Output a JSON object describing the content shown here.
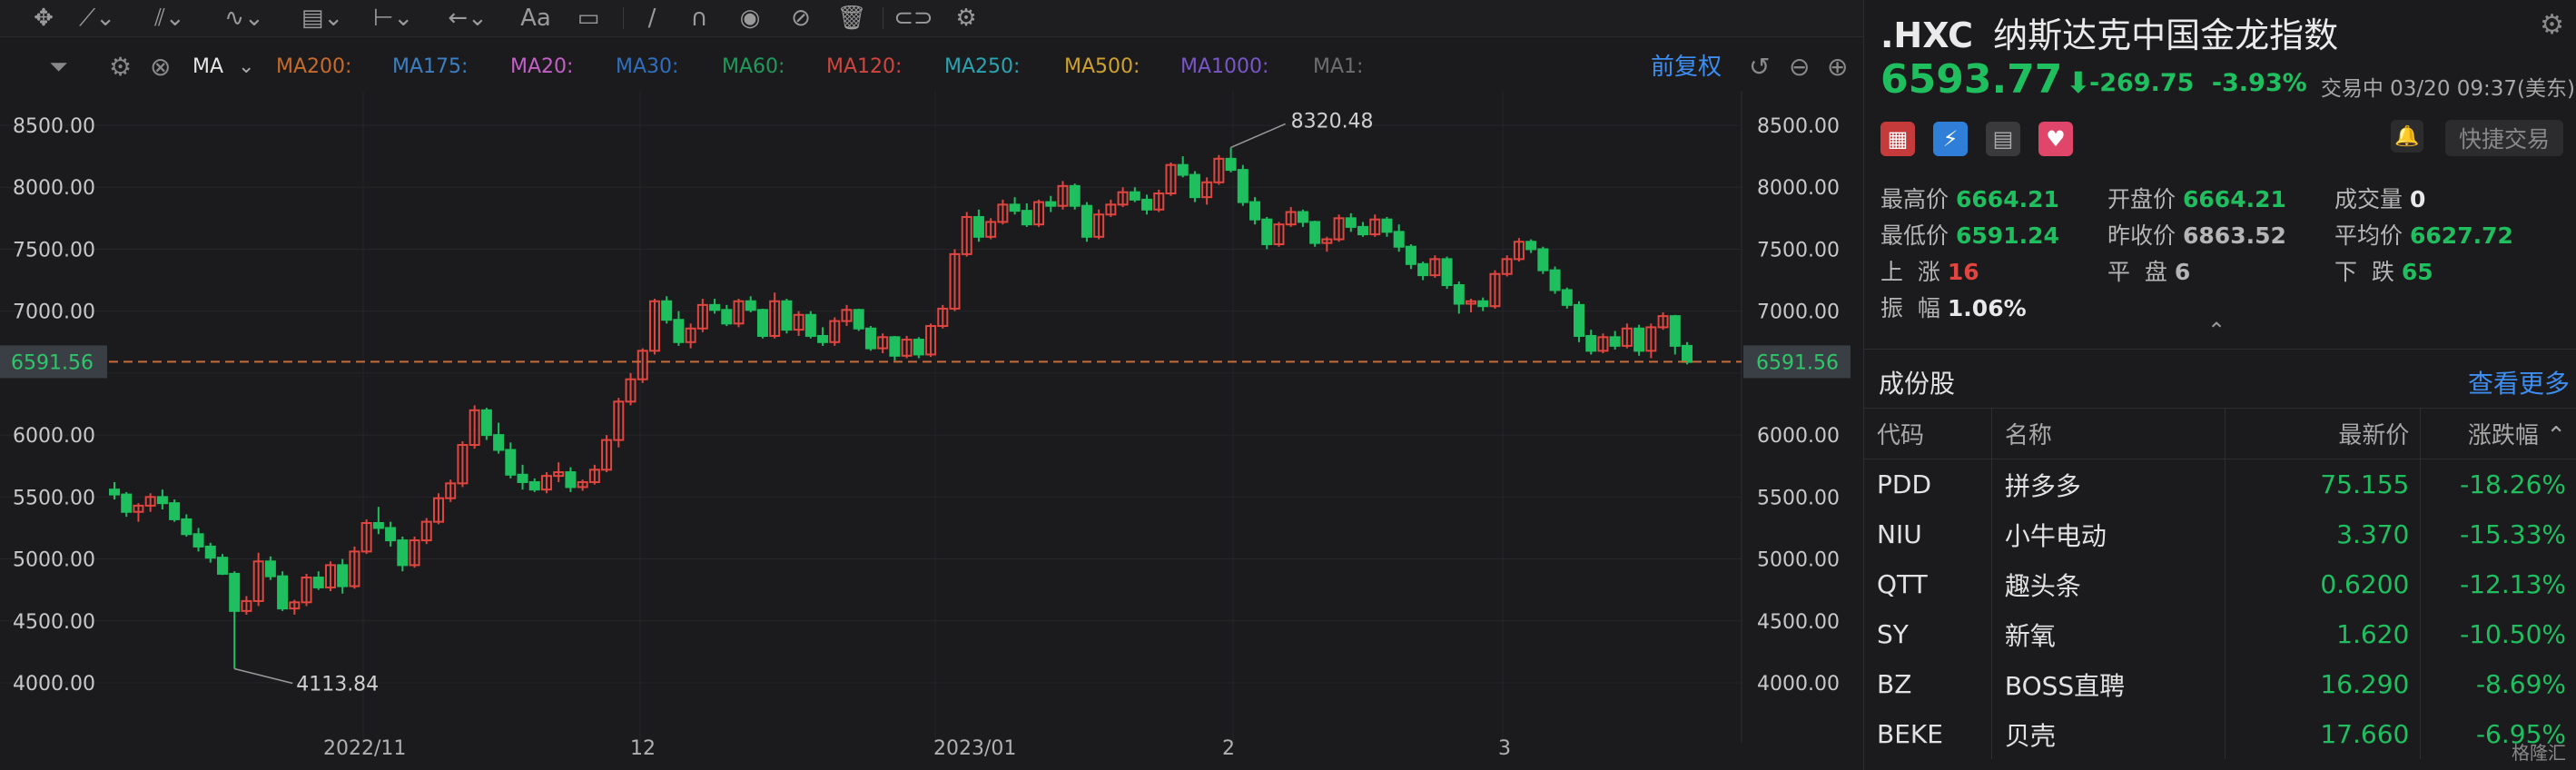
{
  "toolbar": {
    "icons": [
      "crosshair-icon",
      "trendline-icon",
      "channel-icon",
      "wave-icon",
      "fib-icon",
      "measure-icon",
      "arrow-icon",
      "text-icon",
      "comment-icon",
      "pen-icon",
      "magnet-icon",
      "eye-icon",
      "hide-icon",
      "trash-icon",
      "link-icon",
      "gear-icon"
    ],
    "text_tool_label": "Aa"
  },
  "ma_bar": {
    "indicator_label": "MA",
    "items": [
      {
        "label": "MA200:",
        "color": "#c76b2b"
      },
      {
        "label": "MA175:",
        "color": "#3b7fc4"
      },
      {
        "label": "MA20:",
        "color": "#c35fc7"
      },
      {
        "label": "MA30:",
        "color": "#2f6fc0"
      },
      {
        "label": "MA60:",
        "color": "#1f9a5a"
      },
      {
        "label": "MA120:",
        "color": "#d0453d"
      },
      {
        "label": "MA250:",
        "color": "#2aa4b3"
      },
      {
        "label": "MA500:",
        "color": "#d0a12b"
      },
      {
        "label": "MA1000:",
        "color": "#7a55c8"
      },
      {
        "label": "MA1:",
        "color": "#6e6e6e"
      }
    ],
    "restore_label": "前复权"
  },
  "chart_data": {
    "type": "candlestick",
    "y_ticks": [
      "8500.00",
      "8000.00",
      "7500.00",
      "7000.00",
      "6000.00",
      "5500.00",
      "5000.00",
      "4500.00",
      "4000.00"
    ],
    "y_range": [
      3900,
      8700
    ],
    "x_ticks": [
      "2022/11",
      "12",
      "2023/01",
      "2",
      "3"
    ],
    "current_price_label": "6591.56",
    "current_price": 6591.56,
    "max_label": "8320.48",
    "min_label": "4113.84",
    "up_color": "#e0463f",
    "down_color": "#1fbf5f",
    "candles": [
      [
        5560,
        5620,
        5480,
        5520
      ],
      [
        5520,
        5540,
        5340,
        5380
      ],
      [
        5380,
        5450,
        5300,
        5430
      ],
      [
        5430,
        5530,
        5380,
        5500
      ],
      [
        5500,
        5560,
        5400,
        5450
      ],
      [
        5450,
        5480,
        5300,
        5320
      ],
      [
        5320,
        5360,
        5180,
        5200
      ],
      [
        5200,
        5250,
        5060,
        5100
      ],
      [
        5100,
        5130,
        4970,
        5010
      ],
      [
        5010,
        5040,
        4870,
        4880
      ],
      [
        4880,
        4900,
        4113.84,
        4580
      ],
      [
        4580,
        4700,
        4550,
        4660
      ],
      [
        4660,
        5050,
        4620,
        4980
      ],
      [
        4980,
        5020,
        4830,
        4860
      ],
      [
        4860,
        4900,
        4580,
        4600
      ],
      [
        4600,
        4670,
        4550,
        4650
      ],
      [
        4650,
        4880,
        4620,
        4850
      ],
      [
        4850,
        4900,
        4750,
        4770
      ],
      [
        4770,
        4980,
        4740,
        4950
      ],
      [
        4950,
        5000,
        4720,
        4780
      ],
      [
        4780,
        5100,
        4760,
        5060
      ],
      [
        5060,
        5320,
        5040,
        5290
      ],
      [
        5290,
        5420,
        5200,
        5250
      ],
      [
        5250,
        5300,
        5100,
        5150
      ],
      [
        5150,
        5180,
        4900,
        4950
      ],
      [
        4950,
        5180,
        4930,
        5150
      ],
      [
        5150,
        5330,
        5120,
        5300
      ],
      [
        5300,
        5530,
        5280,
        5490
      ],
      [
        5490,
        5640,
        5460,
        5610
      ],
      [
        5610,
        5950,
        5580,
        5920
      ],
      [
        5920,
        6240,
        5890,
        6200
      ],
      [
        6200,
        6220,
        5960,
        6000
      ],
      [
        6000,
        6100,
        5850,
        5880
      ],
      [
        5880,
        5940,
        5650,
        5680
      ],
      [
        5680,
        5760,
        5560,
        5620
      ],
      [
        5620,
        5650,
        5540,
        5560
      ],
      [
        5560,
        5700,
        5530,
        5670
      ],
      [
        5670,
        5780,
        5620,
        5700
      ],
      [
        5700,
        5740,
        5540,
        5580
      ],
      [
        5580,
        5640,
        5550,
        5620
      ],
      [
        5620,
        5760,
        5600,
        5720
      ],
      [
        5720,
        6000,
        5700,
        5960
      ],
      [
        5960,
        6300,
        5900,
        6270
      ],
      [
        6270,
        6500,
        6240,
        6450
      ],
      [
        6450,
        6700,
        6420,
        6680
      ],
      [
        6680,
        7100,
        6650,
        7080
      ],
      [
        7080,
        7120,
        6900,
        6930
      ],
      [
        6930,
        7000,
        6720,
        6750
      ],
      [
        6750,
        6900,
        6700,
        6860
      ],
      [
        6860,
        7100,
        6830,
        7050
      ],
      [
        7050,
        7100,
        6980,
        7010
      ],
      [
        7010,
        7050,
        6880,
        6900
      ],
      [
        6900,
        7100,
        6870,
        7080
      ],
      [
        7080,
        7120,
        6990,
        7010
      ],
      [
        7010,
        7020,
        6780,
        6800
      ],
      [
        6800,
        7150,
        6780,
        7080
      ],
      [
        7080,
        7100,
        6820,
        6850
      ],
      [
        6850,
        7000,
        6800,
        6970
      ],
      [
        6970,
        7000,
        6780,
        6800
      ],
      [
        6800,
        6870,
        6720,
        6750
      ],
      [
        6750,
        6950,
        6720,
        6920
      ],
      [
        6920,
        7050,
        6880,
        7010
      ],
      [
        7010,
        7020,
        6840,
        6860
      ],
      [
        6860,
        6880,
        6680,
        6700
      ],
      [
        6700,
        6820,
        6660,
        6790
      ],
      [
        6790,
        6800,
        6600,
        6640
      ],
      [
        6640,
        6800,
        6620,
        6770
      ],
      [
        6770,
        6790,
        6620,
        6650
      ],
      [
        6650,
        6900,
        6630,
        6880
      ],
      [
        6880,
        7050,
        6860,
        7020
      ],
      [
        7020,
        7500,
        7000,
        7460
      ],
      [
        7460,
        7800,
        7440,
        7760
      ],
      [
        7760,
        7820,
        7560,
        7600
      ],
      [
        7600,
        7750,
        7580,
        7720
      ],
      [
        7720,
        7900,
        7700,
        7860
      ],
      [
        7860,
        7920,
        7780,
        7810
      ],
      [
        7810,
        7870,
        7680,
        7700
      ],
      [
        7700,
        7900,
        7680,
        7880
      ],
      [
        7880,
        7930,
        7800,
        7850
      ],
      [
        7850,
        8050,
        7820,
        8010
      ],
      [
        8010,
        8030,
        7820,
        7850
      ],
      [
        7850,
        7880,
        7560,
        7600
      ],
      [
        7600,
        7820,
        7580,
        7780
      ],
      [
        7780,
        7900,
        7760,
        7860
      ],
      [
        7860,
        8000,
        7840,
        7960
      ],
      [
        7960,
        8000,
        7880,
        7900
      ],
      [
        7900,
        7940,
        7780,
        7820
      ],
      [
        7820,
        7980,
        7800,
        7950
      ],
      [
        7950,
        8200,
        7930,
        8180
      ],
      [
        8180,
        8250,
        8080,
        8100
      ],
      [
        8100,
        8130,
        7880,
        7920
      ],
      [
        7920,
        8080,
        7860,
        8040
      ],
      [
        8040,
        8260,
        8020,
        8230
      ],
      [
        8230,
        8320.48,
        8120,
        8140
      ],
      [
        8140,
        8180,
        7850,
        7880
      ],
      [
        7880,
        7920,
        7700,
        7740
      ],
      [
        7740,
        7760,
        7500,
        7540
      ],
      [
        7540,
        7720,
        7520,
        7700
      ],
      [
        7700,
        7840,
        7680,
        7800
      ],
      [
        7800,
        7820,
        7680,
        7720
      ],
      [
        7720,
        7730,
        7520,
        7550
      ],
      [
        7550,
        7600,
        7480,
        7580
      ],
      [
        7580,
        7780,
        7560,
        7750
      ],
      [
        7750,
        7790,
        7640,
        7680
      ],
      [
        7680,
        7720,
        7600,
        7620
      ],
      [
        7620,
        7780,
        7600,
        7740
      ],
      [
        7740,
        7760,
        7600,
        7640
      ],
      [
        7640,
        7700,
        7480,
        7520
      ],
      [
        7520,
        7540,
        7340,
        7380
      ],
      [
        7380,
        7400,
        7250,
        7290
      ],
      [
        7290,
        7450,
        7270,
        7420
      ],
      [
        7420,
        7440,
        7180,
        7210
      ],
      [
        7210,
        7240,
        6980,
        7060
      ],
      [
        7060,
        7100,
        6990,
        7080
      ],
      [
        7080,
        7110,
        7000,
        7040
      ],
      [
        7040,
        7330,
        7020,
        7300
      ],
      [
        7300,
        7450,
        7280,
        7420
      ],
      [
        7420,
        7590,
        7400,
        7560
      ],
      [
        7560,
        7580,
        7470,
        7500
      ],
      [
        7500,
        7520,
        7300,
        7330
      ],
      [
        7330,
        7360,
        7140,
        7170
      ],
      [
        7170,
        7190,
        7020,
        7050
      ],
      [
        7050,
        7080,
        6750,
        6800
      ],
      [
        6800,
        6850,
        6650,
        6680
      ],
      [
        6680,
        6820,
        6660,
        6790
      ],
      [
        6790,
        6840,
        6690,
        6720
      ],
      [
        6720,
        6900,
        6700,
        6860
      ],
      [
        6860,
        6890,
        6640,
        6680
      ],
      [
        6680,
        6900,
        6620,
        6870
      ],
      [
        6870,
        6990,
        6850,
        6960
      ],
      [
        6960,
        6970,
        6650,
        6720
      ],
      [
        6720,
        6750,
        6570,
        6590
      ]
    ]
  },
  "panel": {
    "symbol": ".HXC",
    "name": "纳斯达克中国金龙指数",
    "price": "6593.77",
    "arrow": "⬇",
    "change": "-269.75",
    "change_pct": "-3.93%",
    "status": "交易中 03/20 09:37(美东)",
    "quick_trade": "快捷交易",
    "stats": [
      {
        "label": "最高价",
        "value": "6664.21",
        "color": "#1fbf5f"
      },
      {
        "label": "开盘价",
        "value": "6664.21",
        "color": "#1fbf5f"
      },
      {
        "label": "成交量",
        "value": "0",
        "color": "#e8e8e8"
      },
      {
        "label": "最低价",
        "value": "6591.24",
        "color": "#1fbf5f"
      },
      {
        "label": "昨收价",
        "value": "6863.52",
        "color": "#b5b5b5"
      },
      {
        "label": "平均价",
        "value": "6627.72",
        "color": "#1fbf5f"
      },
      {
        "label": "上  涨",
        "value": "16",
        "color": "#e0463f"
      },
      {
        "label": "平  盘",
        "value": "6",
        "color": "#b5b5b5"
      },
      {
        "label": "下  跌",
        "value": "65",
        "color": "#1fbf5f"
      },
      {
        "label": "振  幅",
        "value": "1.06%",
        "color": "#e8e8e8"
      }
    ],
    "constituents_title": "成份股",
    "see_more": "查看更多",
    "columns": [
      "代码",
      "名称",
      "最新价",
      "涨跌幅"
    ],
    "rows": [
      {
        "code": "PDD",
        "name": "拼多多",
        "price": "75.155",
        "pct": "-18.26%"
      },
      {
        "code": "NIU",
        "name": "小牛电动",
        "price": "3.370",
        "pct": "-15.33%"
      },
      {
        "code": "QTT",
        "name": "趣头条",
        "price": "0.6200",
        "pct": "-12.13%"
      },
      {
        "code": "SY",
        "name": "新氧",
        "price": "1.620",
        "pct": "-10.50%"
      },
      {
        "code": "BZ",
        "name": "BOSS直聘",
        "price": "16.290",
        "pct": "-8.69%"
      },
      {
        "code": "BEKE",
        "name": "贝壳",
        "price": "17.660",
        "pct": "-6.95%"
      }
    ],
    "watermark": "格隆汇"
  }
}
